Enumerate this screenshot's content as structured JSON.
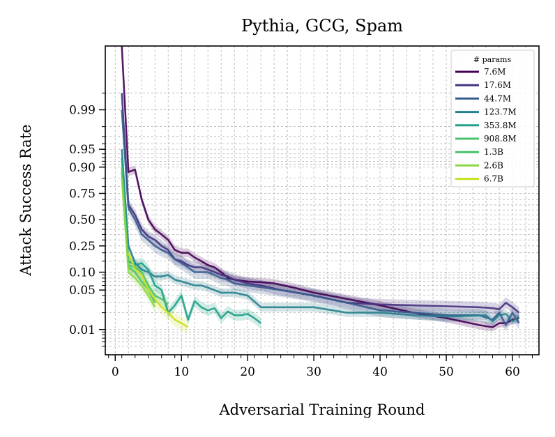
{
  "chart_data": {
    "type": "line",
    "title": "Pythia, GCG, Spam",
    "xlabel": "Adversarial Training Round",
    "ylabel": "Attack Success Rate",
    "xlim": [
      -1.5,
      64
    ],
    "xticks": [
      0,
      10,
      20,
      30,
      40,
      50,
      60
    ],
    "yscale": "logit",
    "ylim": [
      0.0035,
      0.9993
    ],
    "yticks": [
      0.01,
      0.05,
      0.1,
      0.25,
      0.5,
      0.75,
      0.9,
      0.95,
      0.99
    ],
    "ytick_labels": [
      "0.01",
      "0.05",
      "0.10",
      "0.25",
      "0.50",
      "0.75",
      "0.90",
      "0.95",
      "0.99"
    ],
    "grid": true,
    "legend": {
      "title": "# params",
      "placement": "top-right"
    },
    "series": [
      {
        "name": "7.6M",
        "color": "#440154",
        "x": [
          1,
          2,
          3,
          4,
          5,
          6,
          7,
          8,
          9,
          10,
          11,
          12,
          13,
          14,
          15,
          16,
          17,
          18,
          20,
          22,
          24,
          27,
          30,
          35,
          40,
          45,
          50,
          55,
          57,
          58,
          59,
          60,
          61
        ],
        "y": [
          0.9993,
          0.88,
          0.89,
          0.7,
          0.5,
          0.4,
          0.35,
          0.3,
          0.22,
          0.2,
          0.2,
          0.17,
          0.15,
          0.13,
          0.12,
          0.1,
          0.08,
          0.075,
          0.07,
          0.068,
          0.065,
          0.055,
          0.045,
          0.035,
          0.027,
          0.02,
          0.016,
          0.012,
          0.011,
          0.013,
          0.013,
          0.015,
          0.016
        ]
      },
      {
        "name": "17.6M",
        "color": "#46327e",
        "x": [
          1,
          2,
          3,
          4,
          5,
          6,
          7,
          8,
          9,
          10,
          11,
          12,
          13,
          14,
          15,
          16,
          17,
          18,
          20,
          22,
          25,
          30,
          35,
          40,
          45,
          50,
          55,
          57,
          58,
          59,
          60,
          61
        ],
        "y": [
          0.995,
          0.65,
          0.55,
          0.4,
          0.33,
          0.3,
          0.25,
          0.22,
          0.16,
          0.15,
          0.13,
          0.12,
          0.12,
          0.11,
          0.1,
          0.09,
          0.085,
          0.075,
          0.065,
          0.06,
          0.05,
          0.04,
          0.03,
          0.028,
          0.027,
          0.026,
          0.025,
          0.024,
          0.023,
          0.03,
          0.025,
          0.02
        ]
      },
      {
        "name": "44.7M",
        "color": "#365c8d",
        "x": [
          1,
          2,
          3,
          4,
          5,
          6,
          7,
          8,
          9,
          10,
          11,
          12,
          13,
          14,
          15,
          16,
          17,
          18,
          20,
          25,
          30,
          35,
          40,
          45,
          50,
          55,
          57,
          58,
          59,
          60,
          61
        ],
        "y": [
          0.99,
          0.62,
          0.5,
          0.35,
          0.3,
          0.25,
          0.22,
          0.2,
          0.16,
          0.14,
          0.12,
          0.1,
          0.1,
          0.1,
          0.09,
          0.08,
          0.075,
          0.065,
          0.06,
          0.05,
          0.04,
          0.03,
          0.022,
          0.02,
          0.018,
          0.018,
          0.015,
          0.02,
          0.012,
          0.02,
          0.013
        ]
      },
      {
        "name": "123.7M",
        "color": "#277f8e",
        "x": [
          1,
          2,
          3,
          4,
          5,
          6,
          7,
          8,
          9,
          10,
          11,
          12,
          13,
          14,
          16,
          18,
          20,
          22,
          25,
          30,
          35,
          40,
          45,
          50,
          56,
          57,
          58,
          59,
          60,
          61
        ],
        "y": [
          0.95,
          0.25,
          0.14,
          0.11,
          0.1,
          0.085,
          0.085,
          0.09,
          0.075,
          0.07,
          0.065,
          0.06,
          0.06,
          0.055,
          0.045,
          0.045,
          0.04,
          0.025,
          0.025,
          0.025,
          0.02,
          0.02,
          0.018,
          0.017,
          0.018,
          0.014,
          0.018,
          0.019,
          0.014,
          0.017
        ]
      },
      {
        "name": "353.8M",
        "color": "#1fa187",
        "x": [
          1,
          2,
          3,
          4,
          5,
          6,
          7,
          8,
          9,
          10,
          11,
          12,
          13,
          14,
          15,
          16,
          17,
          18,
          19,
          20,
          21,
          22
        ],
        "y": [
          0.93,
          0.15,
          0.13,
          0.14,
          0.11,
          0.06,
          0.05,
          0.02,
          0.027,
          0.04,
          0.015,
          0.032,
          0.025,
          0.022,
          0.024,
          0.016,
          0.021,
          0.018,
          0.018,
          0.019,
          0.016,
          0.013
        ]
      },
      {
        "name": "908.8M",
        "color": "#4ac16d",
        "x": [
          1,
          2,
          3,
          4,
          5,
          6,
          7,
          8
        ],
        "y": [
          0.9,
          0.13,
          0.12,
          0.1,
          0.06,
          0.04,
          0.035,
          0.028
        ]
      },
      {
        "name": "1.3B",
        "color": "#4ac16d",
        "x": [
          1,
          2,
          3,
          4,
          5,
          6
        ],
        "y": [
          0.88,
          0.12,
          0.1,
          0.07,
          0.05,
          0.03
        ]
      },
      {
        "name": "2.6B",
        "color": "#8fd744",
        "x": [
          1,
          2,
          3,
          4,
          5,
          6
        ],
        "y": [
          0.85,
          0.1,
          0.08,
          0.06,
          0.04,
          0.025
        ]
      },
      {
        "name": "6.7B",
        "color": "#c8e020",
        "x": [
          2,
          3,
          4,
          5,
          6,
          7,
          8,
          9,
          10,
          11
        ],
        "y": [
          0.2,
          0.11,
          0.09,
          0.05,
          0.035,
          0.025,
          0.02,
          0.015,
          0.013,
          0.011
        ]
      }
    ]
  }
}
